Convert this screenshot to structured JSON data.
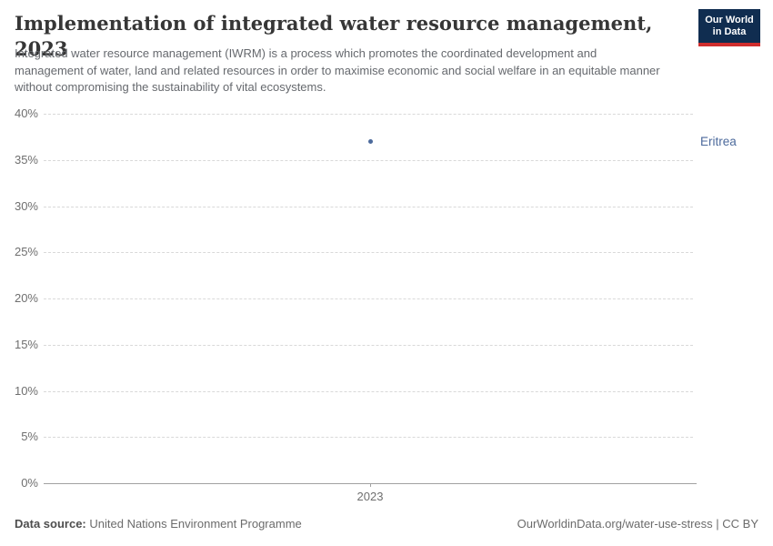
{
  "header": {
    "title": "Implementation of integrated water resource management, 2023",
    "subtitle": "Integrated water resource management (IWRM) is a process which promotes the coordinated development and management of water, land and related resources in order to maximise economic and social welfare in an equitable manner without compromising the sustainability of vital ecosystems.",
    "logo_line1": "Our World",
    "logo_line2": "in Data"
  },
  "chart_data": {
    "type": "scatter",
    "title": "Implementation of integrated water resource management, 2023",
    "x": [
      2023
    ],
    "xtick_labels": [
      "2023"
    ],
    "series": [
      {
        "name": "Eritrea",
        "values": [
          37
        ],
        "color": "#4c6a9c"
      }
    ],
    "xlabel": "",
    "ylabel": "",
    "ylim": [
      0,
      40
    ],
    "yticks": [
      0,
      5,
      10,
      15,
      20,
      25,
      30,
      35,
      40
    ],
    "ytick_suffix": "%",
    "grid": true,
    "gridline_style": "dashed",
    "legend_position": "right-of-point"
  },
  "colors": {
    "accent": "#4c6a9c",
    "logo_navy": "#102d50",
    "logo_red": "#cf2d2d",
    "gridline": "#d9d9d9",
    "axis": "#a1a1a1"
  },
  "footer": {
    "source_label": "Data source:",
    "source_value": "United Nations Environment Programme",
    "right_text": "OurWorldinData.org/water-use-stress | CC BY"
  }
}
